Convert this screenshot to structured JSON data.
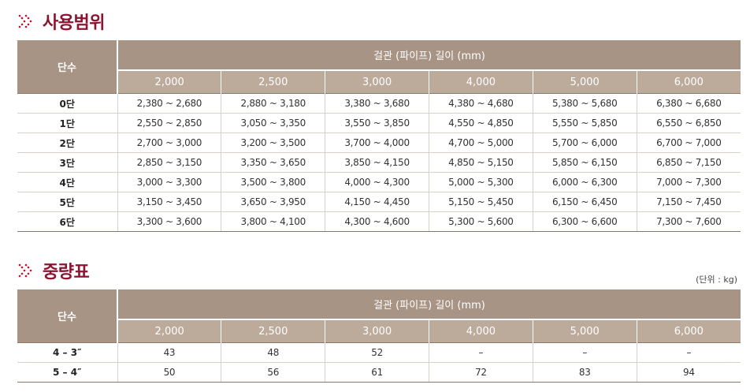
{
  "section1": {
    "title": "사용범위"
  },
  "section2": {
    "title": "중량표",
    "unit_note": "(단위 : kg)"
  },
  "colors": {
    "accent": "#8d1430",
    "header_dark": "#a89484",
    "header_light": "#bcaa9b"
  },
  "icons": {
    "section_marker": "double-chevron-right-icon"
  },
  "usage_table": {
    "row_header": "단수",
    "group_header": "걸관 (파이프) 길이 (mm)",
    "columns": [
      "2,000",
      "2,500",
      "3,000",
      "4,000",
      "5,000",
      "6,000"
    ],
    "rows": [
      {
        "label": "0단",
        "cells": [
          "2,380 ~ 2,680",
          "2,880 ~ 3,180",
          "3,380 ~ 3,680",
          "4,380 ~ 4,680",
          "5,380 ~ 5,680",
          "6,380 ~ 6,680"
        ]
      },
      {
        "label": "1단",
        "cells": [
          "2,550 ~ 2,850",
          "3,050 ~ 3,350",
          "3,550 ~ 3,850",
          "4,550 ~ 4,850",
          "5,550 ~ 5,850",
          "6,550 ~ 6,850"
        ]
      },
      {
        "label": "2단",
        "cells": [
          "2,700 ~ 3,000",
          "3,200 ~ 3,500",
          "3,700 ~ 4,000",
          "4,700 ~ 5,000",
          "5,700 ~ 6,000",
          "6,700 ~ 7,000"
        ]
      },
      {
        "label": "3단",
        "cells": [
          "2,850 ~ 3,150",
          "3,350 ~ 3,650",
          "3,850 ~ 4,150",
          "4,850 ~ 5,150",
          "5,850 ~ 6,150",
          "6,850 ~ 7,150"
        ]
      },
      {
        "label": "4단",
        "cells": [
          "3,000 ~ 3,300",
          "3,500 ~ 3,800",
          "4,000 ~ 4,300",
          "5,000 ~ 5,300",
          "6,000 ~ 6,300",
          "7,000 ~ 7,300"
        ]
      },
      {
        "label": "5단",
        "cells": [
          "3,150 ~ 3,450",
          "3,650 ~ 3,950",
          "4,150 ~ 4,450",
          "5,150 ~ 5,450",
          "6,150 ~ 6,450",
          "7,150 ~ 7,450"
        ]
      },
      {
        "label": "6단",
        "cells": [
          "3,300 ~ 3,600",
          "3,800 ~ 4,100",
          "4,300 ~ 4,600",
          "5,300 ~ 5,600",
          "6,300 ~ 6,600",
          "7,300 ~ 7,600"
        ]
      }
    ]
  },
  "weight_table": {
    "row_header": "단수",
    "group_header": "걸관 (파이프) 길이 (mm)",
    "columns": [
      "2,000",
      "2,500",
      "3,000",
      "4,000",
      "5,000",
      "6,000"
    ],
    "rows": [
      {
        "label": "4 – 3″",
        "cells": [
          "43",
          "48",
          "52",
          "–",
          "–",
          "–"
        ]
      },
      {
        "label": "5 – 4″",
        "cells": [
          "50",
          "56",
          "61",
          "72",
          "83",
          "94"
        ]
      }
    ]
  }
}
